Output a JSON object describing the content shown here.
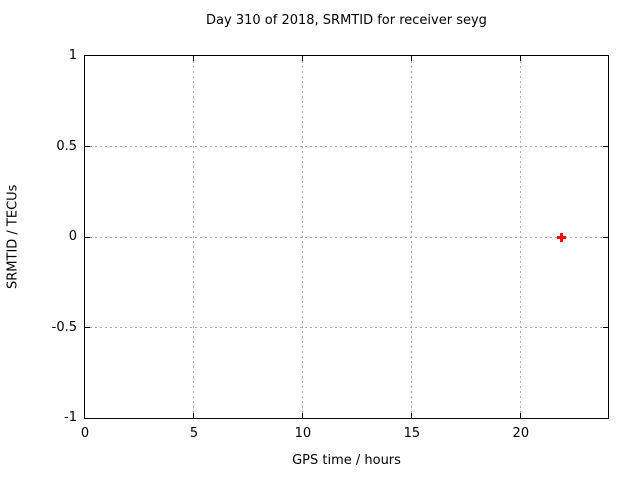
{
  "chart_data": {
    "type": "scatter",
    "title": "Day 310 of 2018, SRMTID for receiver seyg",
    "xlabel": "GPS time / hours",
    "ylabel": "SRMTID / TECUs",
    "xlim": [
      0,
      24
    ],
    "ylim": [
      -1,
      1
    ],
    "xticks": [
      {
        "v": 0,
        "label": "0"
      },
      {
        "v": 5,
        "label": "5"
      },
      {
        "v": 10,
        "label": "10"
      },
      {
        "v": 15,
        "label": "15"
      },
      {
        "v": 20,
        "label": "20"
      }
    ],
    "yticks": [
      {
        "v": -1,
        "label": "-1"
      },
      {
        "v": -0.5,
        "label": "-0.5"
      },
      {
        "v": 0,
        "label": "0"
      },
      {
        "v": 0.5,
        "label": "0.5"
      },
      {
        "v": 1,
        "label": "1"
      }
    ],
    "grid": true,
    "legend": "none",
    "series": [
      {
        "name": "SRMTID",
        "marker": "plus",
        "color": "#ff0000",
        "points": [
          {
            "x": 21.85,
            "y": 0
          }
        ]
      }
    ],
    "colors": {
      "axis": "#000000",
      "grid": "#aaaaaa",
      "background": "#ffffff",
      "text": "#000000"
    }
  }
}
